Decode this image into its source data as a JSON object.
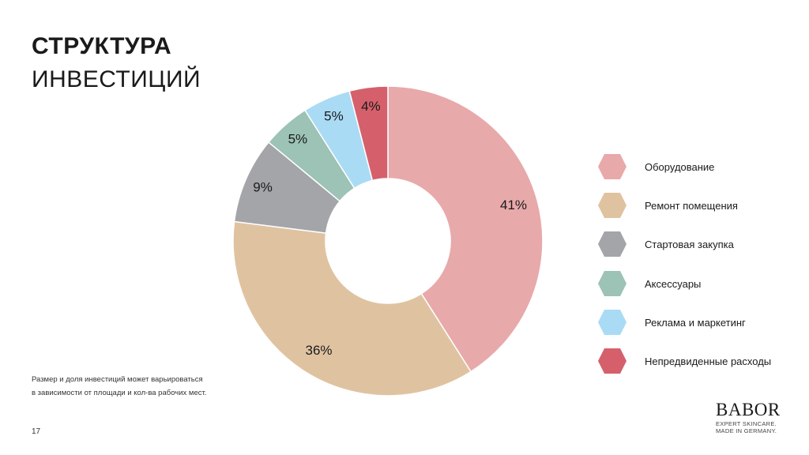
{
  "slide": {
    "title_bold": "СТРУКТУРА",
    "title_light": "ИНВЕСТИЦИЙ",
    "note_line1": "Размер и доля инвестиций может варьироваться",
    "note_line2": "в зависимости от площади и кол-ва рабочих мест.",
    "page_number": "17"
  },
  "logo": {
    "name": "BABOR",
    "tag_line1": "EXPERT SKINCARE.",
    "tag_line2": "MADE IN GERMANY."
  },
  "chart_data": {
    "type": "pie",
    "variant": "donut",
    "title": "",
    "legend_position": "right",
    "slices": [
      {
        "label": "Оборудование",
        "value": 41,
        "value_label": "41%",
        "color": "#e8a9ab"
      },
      {
        "label": "Ремонт помещения",
        "value": 36,
        "value_label": "36%",
        "color": "#dfc3a1"
      },
      {
        "label": "Стартовая закупка",
        "value": 9,
        "value_label": "9%",
        "color": "#a3a5a8"
      },
      {
        "label": "Аксессуары",
        "value": 5,
        "value_label": "5%",
        "color": "#9cc3b5"
      },
      {
        "label": "Реклама и маркетинг",
        "value": 5,
        "value_label": "5%",
        "color": "#a9dbf5"
      },
      {
        "label": "Непредвиденные расходы",
        "value": 4,
        "value_label": "4%",
        "color": "#d5606c"
      }
    ]
  }
}
